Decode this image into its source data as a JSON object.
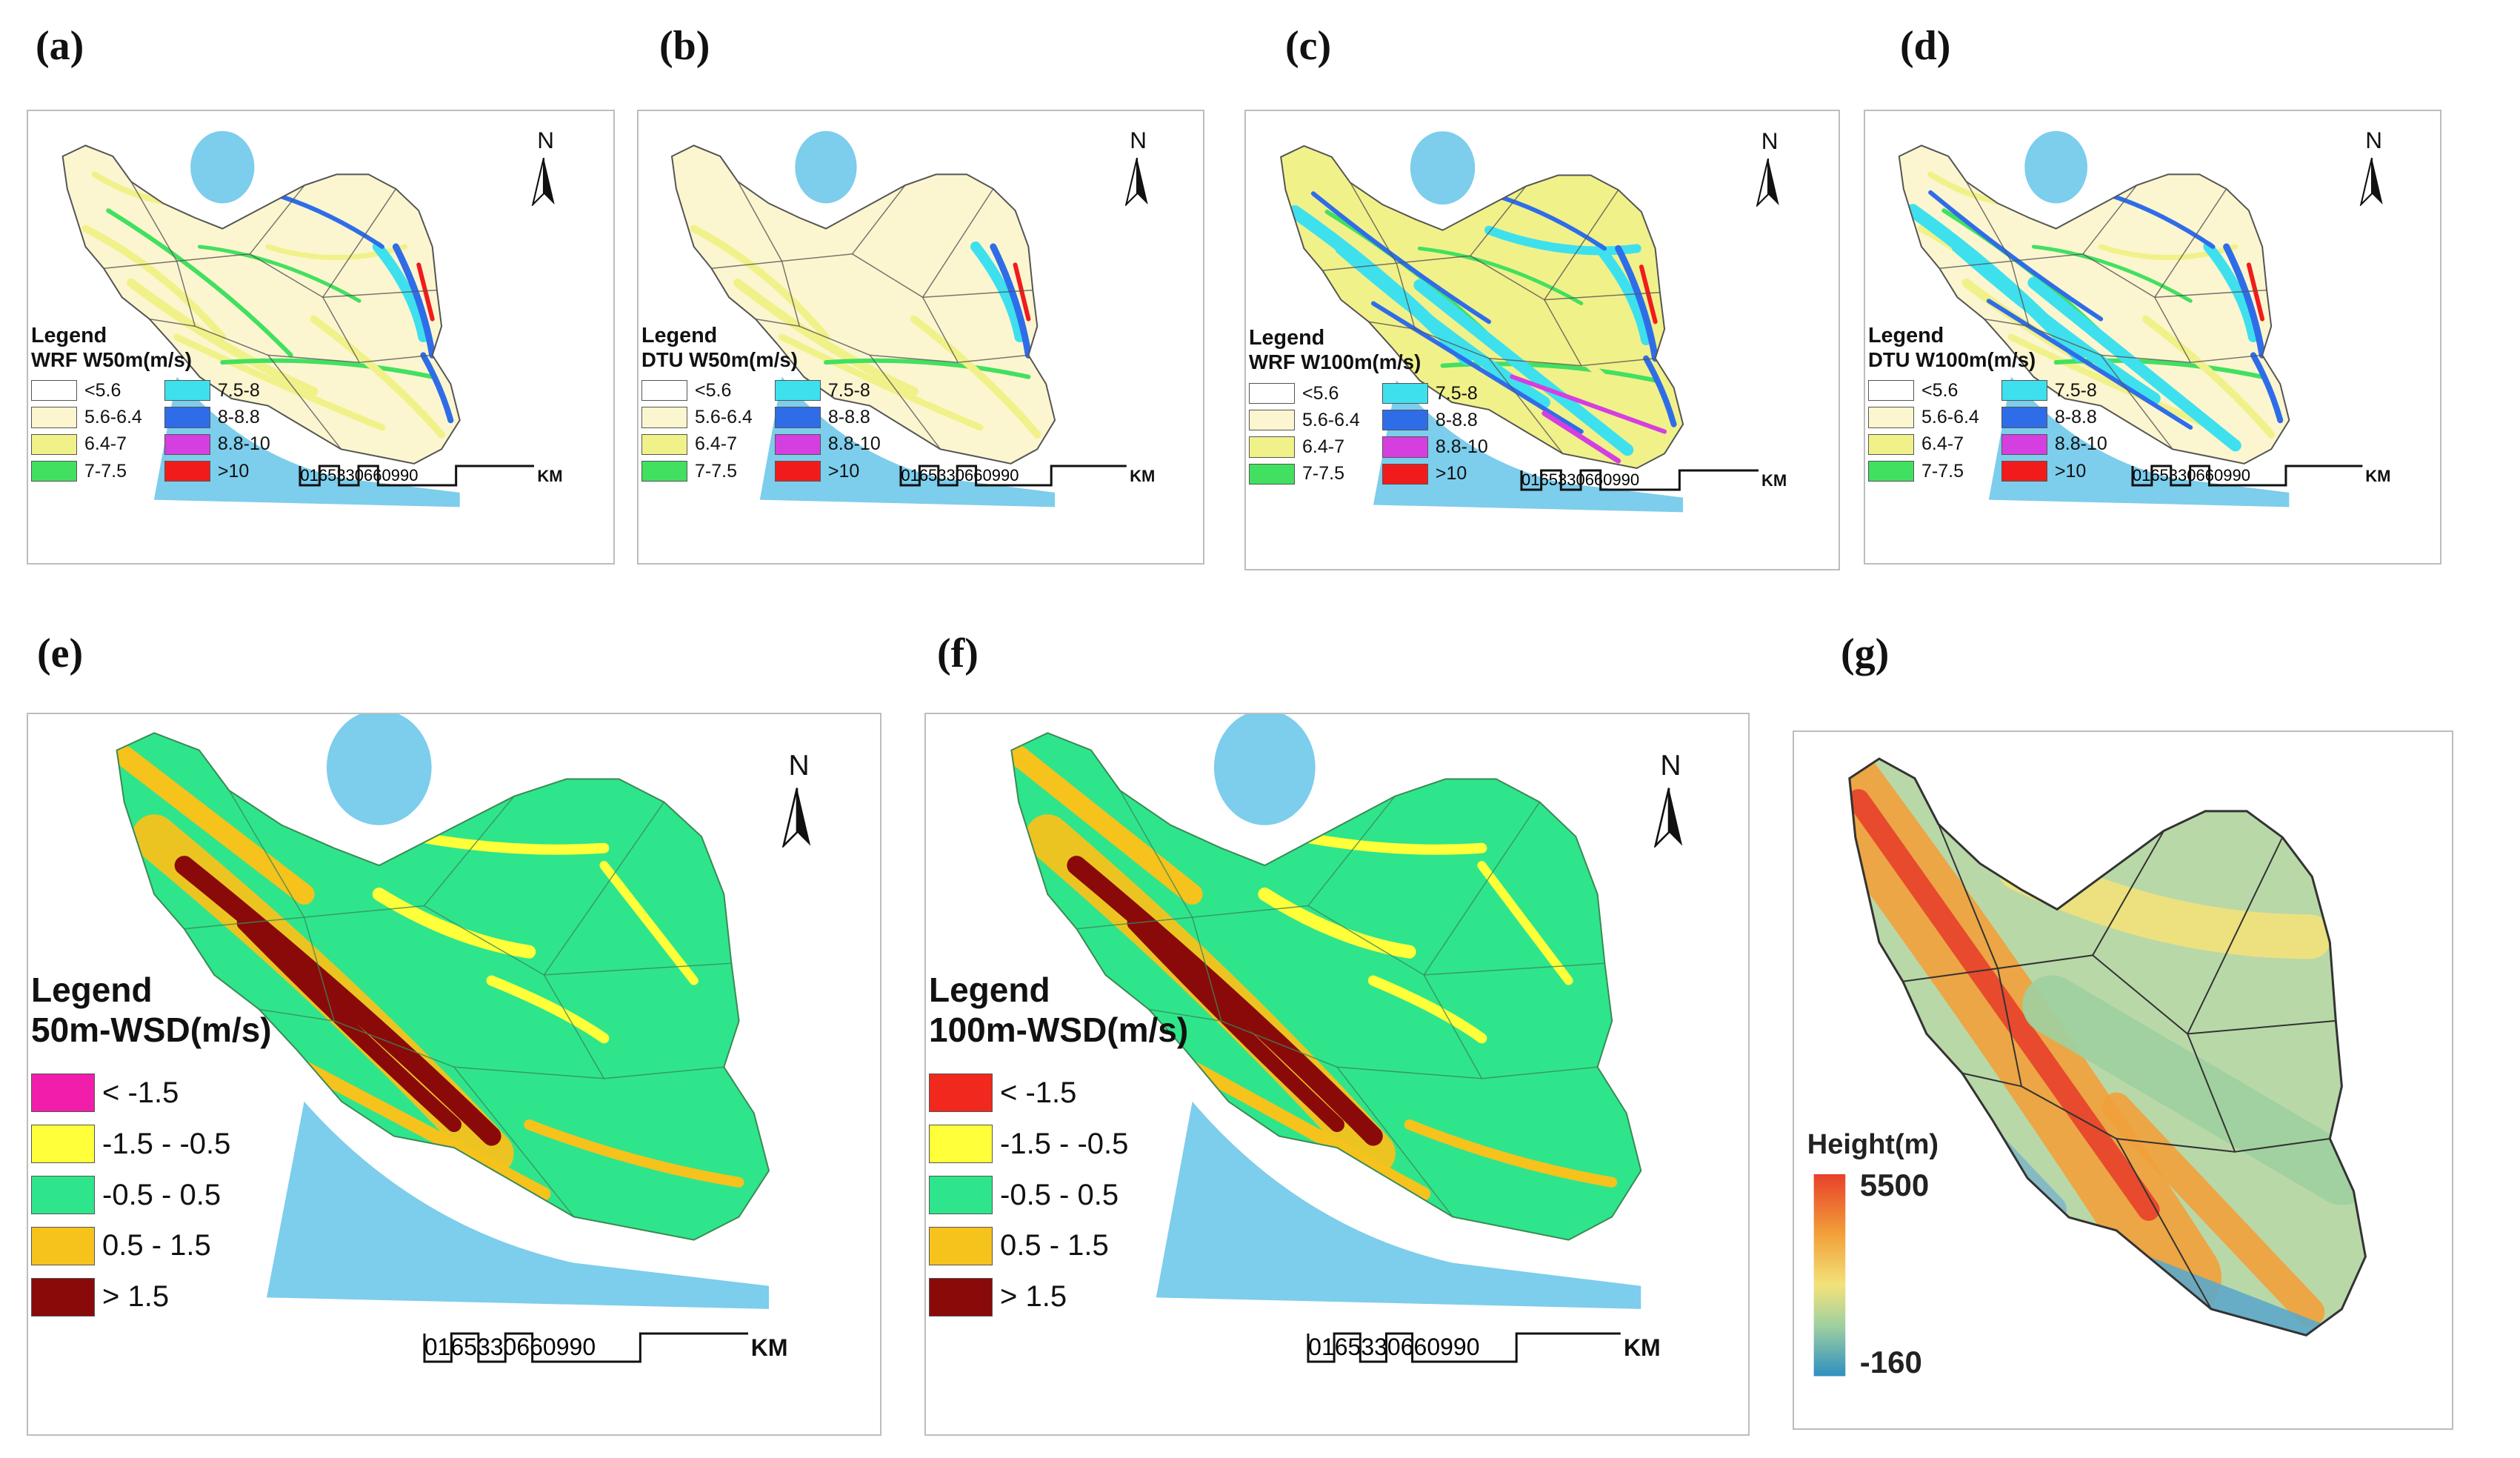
{
  "panels": {
    "a": {
      "label": "(a)",
      "legend_title": "Legend",
      "legend_sub": "WRF W50m(m/s)"
    },
    "b": {
      "label": "(b)",
      "legend_title": "Legend",
      "legend_sub": "DTU W50m(m/s)"
    },
    "c": {
      "label": "(c)",
      "legend_title": "Legend",
      "legend_sub": "WRF W100m(m/s)"
    },
    "d": {
      "label": "(d)",
      "legend_title": "Legend",
      "legend_sub": "DTU W100m(m/s)"
    },
    "e": {
      "label": "(e)",
      "legend_title": "Legend",
      "legend_sub": "50m-WSD(m/s)"
    },
    "f": {
      "label": "(f)",
      "legend_title": "Legend",
      "legend_sub": "100m-WSD(m/s)"
    },
    "g": {
      "label": "(g)",
      "height_title": "Height(m)",
      "height_max": "5500",
      "height_min": "-160"
    }
  },
  "north_label": "N",
  "speed_classes": [
    {
      "label": "<5.6",
      "color": "#ffffff"
    },
    {
      "label": "5.6-6.4",
      "color": "#fbf6cf"
    },
    {
      "label": "6.4-7",
      "color": "#f1f18a"
    },
    {
      "label": "7-7.5",
      "color": "#42e060"
    },
    {
      "label": "7.5-8",
      "color": "#3ee0ee"
    },
    {
      "label": "8-8.8",
      "color": "#2f6de8"
    },
    {
      "label": "8.8-10",
      "color": "#d53fe0"
    },
    {
      "label": ">10",
      "color": "#f21b1b"
    }
  ],
  "wsd_classes_e": [
    {
      "label": "< -1.5",
      "color": "#f01eaa"
    },
    {
      "label": "-1.5 - -0.5",
      "color": "#ffff3a"
    },
    {
      "label": "-0.5 - 0.5",
      "color": "#2ee58c"
    },
    {
      "label": "0.5 - 1.5",
      "color": "#f6c21c"
    },
    {
      "label": "> 1.5",
      "color": "#8a0a0a"
    }
  ],
  "wsd_classes_f": [
    {
      "label": "< -1.5",
      "color": "#f0281e"
    },
    {
      "label": "-1.5 - -0.5",
      "color": "#ffff3a"
    },
    {
      "label": "-0.5 - 0.5",
      "color": "#2ee58c"
    },
    {
      "label": "0.5 - 1.5",
      "color": "#f6c21c"
    },
    {
      "label": "> 1.5",
      "color": "#8a0a0a"
    }
  ],
  "scale": {
    "ticks": [
      "0",
      "165",
      "330",
      "660",
      "990"
    ],
    "unit": "KM"
  },
  "colors": {
    "sea": "#7dcdec",
    "border": "#555555",
    "panel_border": "#bdbdbd"
  }
}
